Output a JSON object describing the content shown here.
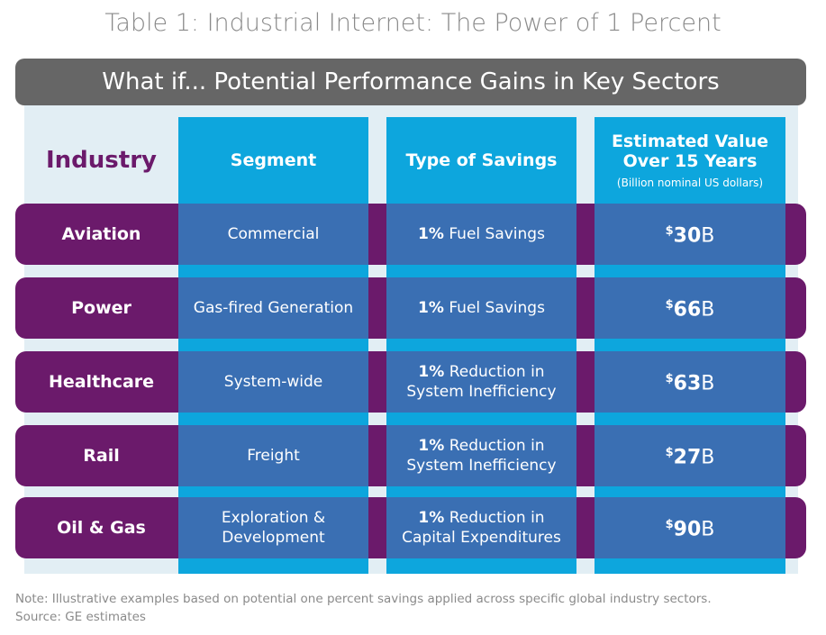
{
  "title": "Table 1: Industrial Internet: The Power of 1 Percent",
  "banner": "What if... Potential Performance Gains in Key Sectors",
  "headers": {
    "industry": "Industry",
    "segment": "Segment",
    "savings": "Type of Savings",
    "value_line1": "Estimated Value",
    "value_line2": "Over 15 Years",
    "value_sub": "(Billion nominal US dollars)"
  },
  "rows": [
    {
      "industry": "Aviation",
      "segment": "Commercial",
      "pct": "1%",
      "savings": "Fuel Savings",
      "currency": "$",
      "amount": "30",
      "unit": "B"
    },
    {
      "industry": "Power",
      "segment": "Gas-fired Generation",
      "pct": "1%",
      "savings": "Fuel Savings",
      "currency": "$",
      "amount": "66",
      "unit": "B"
    },
    {
      "industry": "Healthcare",
      "segment": "System-wide",
      "pct": "1%",
      "savings": "Reduction in System Inefficiency",
      "currency": "$",
      "amount": "63",
      "unit": "B"
    },
    {
      "industry": "Rail",
      "segment": "Freight",
      "pct": "1%",
      "savings": "Reduction in System Inefficiency",
      "currency": "$",
      "amount": "27",
      "unit": "B"
    },
    {
      "industry": "Oil & Gas",
      "segment": "Exploration & Development",
      "pct": "1%",
      "savings": "Reduction in Capital Expenditures",
      "currency": "$",
      "amount": "90",
      "unit": "B"
    }
  ],
  "note": "Note: Illustrative examples based on potential one percent savings applied across specific global industry sectors.",
  "source": "Source: GE estimates"
}
